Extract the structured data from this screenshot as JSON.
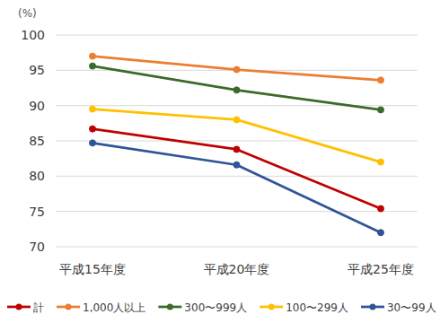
{
  "chart_data": {
    "type": "line",
    "y_label": "(%)",
    "categories": [
      "平成15年度",
      "平成20年度",
      "平成25年度"
    ],
    "series": [
      {
        "name": "計",
        "color": "#c00000",
        "values": [
          86.7,
          83.8,
          75.4
        ]
      },
      {
        "name": "1,000人以上",
        "color": "#ed7d31",
        "values": [
          97.0,
          95.1,
          93.6
        ]
      },
      {
        "name": "300〜999人",
        "color": "#3b6b2a",
        "values": [
          95.6,
          92.2,
          89.4
        ]
      },
      {
        "name": "100〜299人",
        "color": "#ffc000",
        "values": [
          89.5,
          88.0,
          82.0
        ]
      },
      {
        "name": "30〜99人",
        "color": "#2f5597",
        "values": [
          84.7,
          81.6,
          72.0
        ]
      }
    ],
    "ylim": [
      70,
      100
    ],
    "yticks": [
      70,
      75,
      80,
      85,
      90,
      95,
      100
    ],
    "grid": true,
    "marker": "circle",
    "legend": "bottom"
  }
}
